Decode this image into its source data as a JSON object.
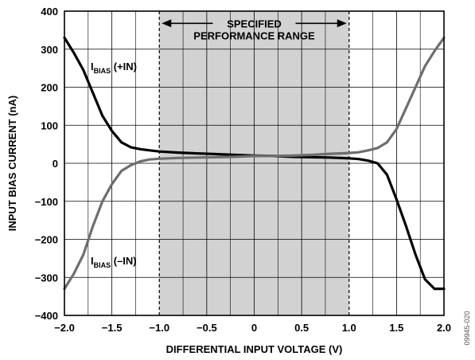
{
  "chart_data": {
    "type": "line",
    "title": "",
    "xlabel": "DIFFERENTIAL INPUT VOLTAGE (V)",
    "ylabel": "INPUT BIAS CURRENT (nA)",
    "xlim": [
      -2.0,
      2.0
    ],
    "ylim": [
      -400,
      400
    ],
    "x_ticks": [
      -2.0,
      -1.5,
      -1.0,
      -0.5,
      0,
      0.5,
      1.0,
      1.5,
      2.0
    ],
    "x_tick_labels": [
      "−2.0",
      "−1.5",
      "−1.0",
      "−0.5",
      "0",
      "0.5",
      "1.0",
      "1.5",
      "2.0"
    ],
    "y_ticks": [
      400,
      300,
      200,
      100,
      0,
      -100,
      -200,
      -300,
      -400
    ],
    "y_tick_labels": [
      "400",
      "300",
      "200",
      "100",
      "0",
      "−100",
      "−200",
      "−300",
      "−400"
    ],
    "grid": true,
    "x_minor_step": 0.25,
    "shaded_region": {
      "x": [
        -1.0,
        1.0
      ],
      "color": "#d2d2d2",
      "label_line1": "SPECIFIED",
      "label_line2": "PERFORMANCE RANGE"
    },
    "series": [
      {
        "name": "IBIAS (+IN)",
        "label_main": "I",
        "label_sub": "BIAS",
        "label_suffix": " (+IN)",
        "color": "#000000",
        "x": [
          -2.0,
          -1.9,
          -1.8,
          -1.7,
          -1.6,
          -1.5,
          -1.4,
          -1.3,
          -1.2,
          -1.1,
          -1.0,
          -0.8,
          -0.6,
          -0.4,
          -0.2,
          0.0,
          0.2,
          0.4,
          0.6,
          0.8,
          1.0,
          1.1,
          1.2,
          1.3,
          1.4,
          1.5,
          1.6,
          1.7,
          1.8,
          1.9,
          2.0
        ],
        "y": [
          330,
          290,
          245,
          185,
          125,
          85,
          55,
          42,
          37,
          34,
          31,
          28,
          26,
          24,
          22,
          20,
          19,
          17,
          16,
          15,
          13,
          11,
          7,
          0,
          -30,
          -95,
          -165,
          -240,
          -305,
          -330,
          -330
        ]
      },
      {
        "name": "IBIAS (−IN)",
        "label_main": "I",
        "label_sub": "BIAS",
        "label_suffix": " (–IN)",
        "color": "#6e6e6e",
        "x": [
          -2.0,
          -1.9,
          -1.8,
          -1.7,
          -1.6,
          -1.5,
          -1.4,
          -1.3,
          -1.2,
          -1.1,
          -1.0,
          -0.8,
          -0.6,
          -0.4,
          -0.2,
          0.0,
          0.2,
          0.4,
          0.6,
          0.8,
          1.0,
          1.1,
          1.2,
          1.3,
          1.4,
          1.5,
          1.6,
          1.7,
          1.8,
          1.9,
          2.0
        ],
        "y": [
          -330,
          -290,
          -240,
          -165,
          -100,
          -55,
          -20,
          -5,
          5,
          10,
          12,
          14,
          15,
          16,
          17,
          19,
          19,
          20,
          22,
          25,
          27,
          29,
          34,
          40,
          55,
          90,
          145,
          200,
          255,
          295,
          330
        ]
      }
    ]
  },
  "figure_code": "09945-020"
}
